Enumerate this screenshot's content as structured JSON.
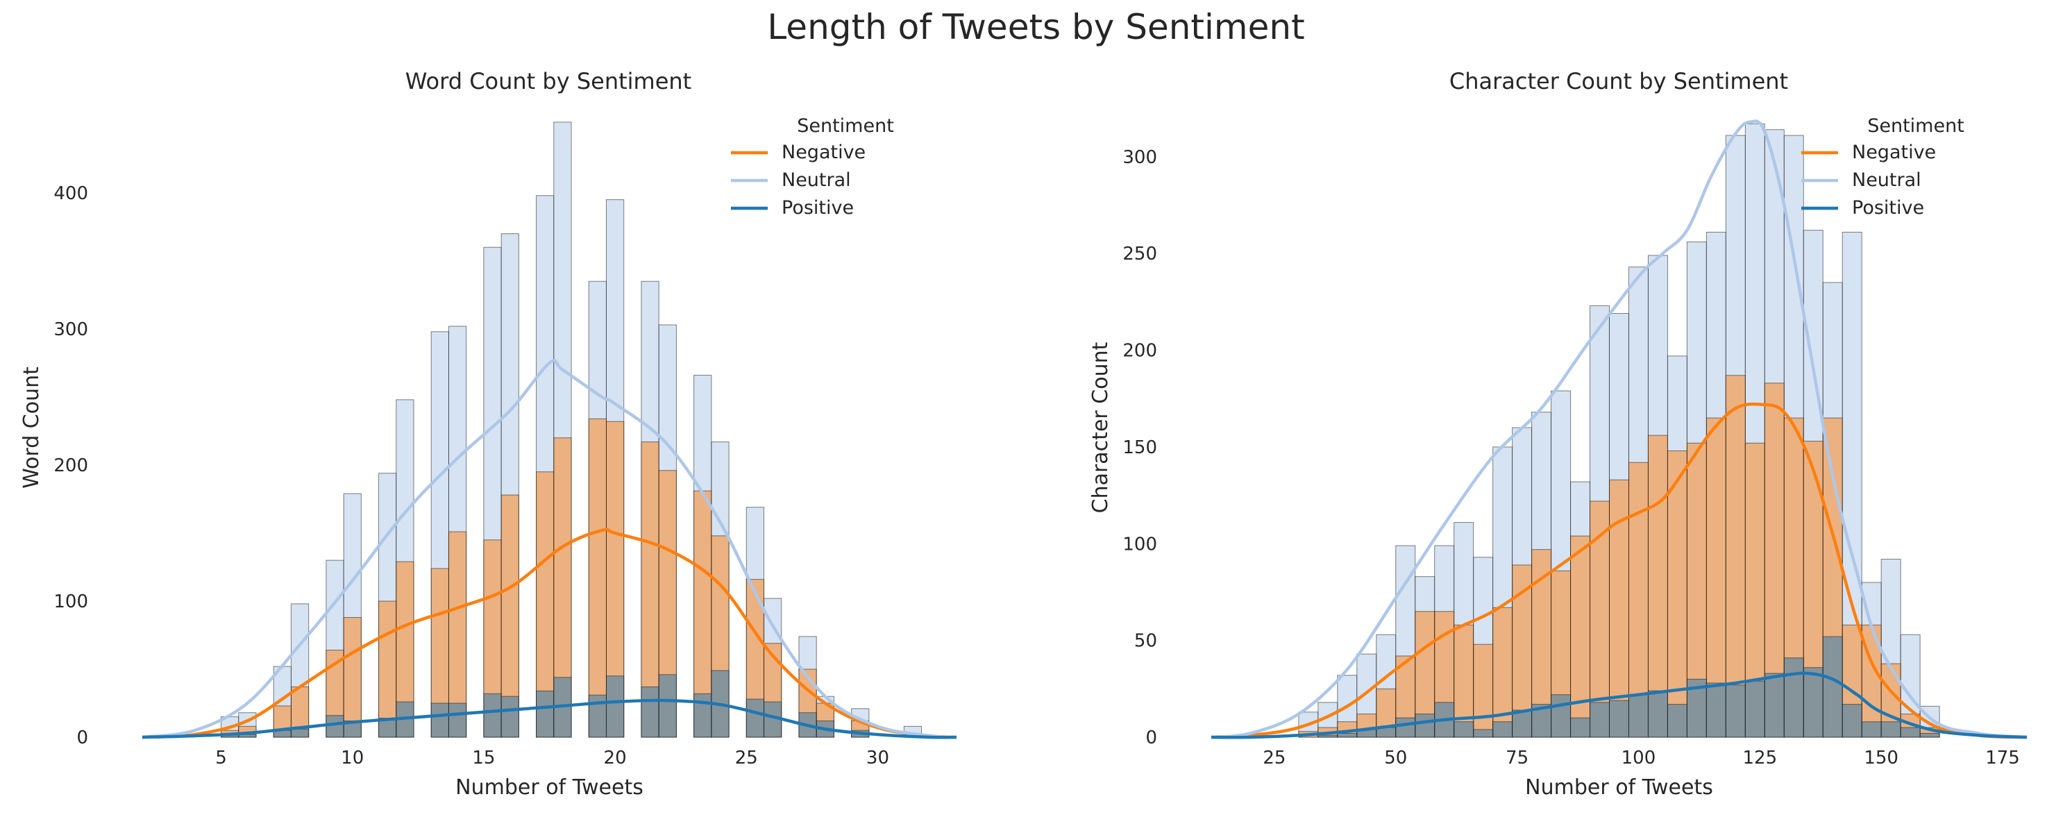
{
  "figure": {
    "title": "Length of Tweets by Sentiment"
  },
  "colors": {
    "Negative": "#ff7f0e",
    "Neutral": "#aec7e8",
    "Positive": "#1f77b4"
  },
  "chart_data": [
    {
      "type": "histogram",
      "title": "Word Count by Sentiment",
      "xlabel": "Number of Tweets",
      "ylabel": "Word Count",
      "xlim": [
        2,
        33
      ],
      "ylim": [
        0,
        455
      ],
      "xticks": [
        5,
        10,
        15,
        20,
        25,
        30
      ],
      "yticks": [
        0,
        100,
        200,
        300,
        400
      ],
      "bin_width": 0.667,
      "grid": false,
      "legend": {
        "title": "Sentiment",
        "position": "top-right",
        "entries": [
          "Negative",
          "Neutral",
          "Positive"
        ]
      },
      "bins": [
        5,
        5.667,
        7,
        7.667,
        9,
        9.667,
        11,
        11.667,
        13,
        13.667,
        15,
        15.667,
        17,
        17.667,
        19,
        19.667,
        21,
        21.667,
        23,
        23.667,
        25,
        25.667,
        27,
        27.667,
        29,
        31
      ],
      "series": [
        {
          "name": "Negative",
          "values": [
            5,
            8,
            23,
            37,
            64,
            88,
            100,
            129,
            124,
            151,
            145,
            178,
            195,
            220,
            234,
            232,
            217,
            196,
            181,
            148,
            116,
            69,
            50,
            25,
            12,
            2
          ]
        },
        {
          "name": "Neutral",
          "values": [
            15,
            18,
            52,
            98,
            130,
            179,
            194,
            248,
            298,
            302,
            360,
            370,
            398,
            452,
            335,
            395,
            335,
            303,
            266,
            217,
            169,
            102,
            74,
            30,
            21,
            8
          ]
        },
        {
          "name": "Positive",
          "values": [
            2,
            2,
            5,
            6,
            16,
            12,
            14,
            26,
            25,
            25,
            32,
            30,
            34,
            44,
            31,
            45,
            37,
            46,
            32,
            49,
            28,
            26,
            18,
            12,
            5,
            1
          ]
        }
      ],
      "kde": [
        {
          "name": "Negative",
          "x": [
            2,
            4,
            6,
            8,
            10,
            12,
            14,
            16,
            18,
            19.5,
            20,
            22,
            24,
            26,
            28,
            30,
            32,
            33
          ],
          "y": [
            0,
            2,
            12,
            37,
            62,
            82,
            95,
            110,
            140,
            152,
            150,
            138,
            112,
            60,
            25,
            7,
            1,
            0
          ]
        },
        {
          "name": "Neutral",
          "x": [
            2,
            4,
            6,
            8,
            10,
            12,
            14,
            16,
            17.5,
            18,
            19.5,
            20,
            22,
            24,
            26,
            28,
            30,
            32,
            33
          ],
          "y": [
            0,
            5,
            25,
            68,
            115,
            165,
            205,
            240,
            275,
            270,
            250,
            245,
            215,
            158,
            82,
            30,
            8,
            1,
            0
          ]
        },
        {
          "name": "Positive",
          "x": [
            2,
            4,
            6,
            8,
            10,
            12,
            14,
            16,
            18,
            20,
            22,
            24,
            26,
            28,
            30,
            32,
            33
          ],
          "y": [
            0,
            1,
            3,
            7,
            11,
            14,
            17,
            20,
            23,
            26,
            27,
            24,
            15,
            6,
            2,
            0,
            0
          ]
        }
      ]
    },
    {
      "type": "histogram",
      "title": "Character Count by Sentiment",
      "xlabel": "Number of Tweets",
      "ylabel": "Character Count",
      "xlim": [
        12,
        180
      ],
      "ylim": [
        0,
        320
      ],
      "xticks": [
        25,
        50,
        75,
        100,
        125,
        150,
        175
      ],
      "yticks": [
        0,
        50,
        100,
        150,
        200,
        250,
        300
      ],
      "bin_width": 4,
      "grid": false,
      "legend": {
        "title": "Sentiment",
        "position": "top-right",
        "entries": [
          "Negative",
          "Neutral",
          "Positive"
        ]
      },
      "bins": [
        30,
        34,
        38,
        42,
        46,
        50,
        54,
        58,
        62,
        66,
        70,
        74,
        78,
        82,
        86,
        90,
        94,
        98,
        102,
        106,
        110,
        114,
        118,
        122,
        126,
        130,
        134,
        138,
        142,
        146,
        150,
        154,
        158
      ],
      "series": [
        {
          "name": "Negative",
          "values": [
            3,
            5,
            8,
            12,
            25,
            42,
            65,
            65,
            58,
            48,
            67,
            89,
            97,
            86,
            104,
            122,
            133,
            142,
            156,
            148,
            152,
            165,
            187,
            152,
            183,
            165,
            153,
            165,
            58,
            58,
            38,
            12,
            5
          ]
        },
        {
          "name": "Neutral",
          "values": [
            13,
            18,
            32,
            43,
            53,
            99,
            83,
            99,
            111,
            93,
            150,
            160,
            168,
            179,
            132,
            223,
            219,
            243,
            249,
            197,
            256,
            261,
            311,
            317,
            314,
            311,
            262,
            235,
            261,
            80,
            92,
            53,
            16
          ]
        },
        {
          "name": "Positive",
          "values": [
            0,
            1,
            2,
            4,
            5,
            10,
            12,
            18,
            8,
            4,
            8,
            14,
            17,
            22,
            10,
            18,
            19,
            22,
            24,
            17,
            30,
            28,
            27,
            29,
            33,
            41,
            36,
            52,
            17,
            8,
            8,
            5,
            2
          ]
        }
      ],
      "kde": [
        {
          "name": "Negative",
          "x": [
            12,
            20,
            30,
            40,
            50,
            60,
            70,
            80,
            90,
            95,
            100,
            105,
            110,
            115,
            120,
            125,
            130,
            135,
            140,
            145,
            150,
            160,
            170,
            180
          ],
          "y": [
            0,
            1,
            5,
            16,
            35,
            53,
            65,
            82,
            100,
            110,
            116,
            123,
            140,
            158,
            170,
            172,
            168,
            145,
            105,
            60,
            30,
            7,
            1,
            0
          ]
        },
        {
          "name": "Neutral",
          "x": [
            12,
            20,
            30,
            40,
            50,
            60,
            70,
            80,
            90,
            100,
            105,
            110,
            115,
            120,
            123,
            126,
            130,
            135,
            140,
            145,
            150,
            160,
            170,
            180
          ],
          "y": [
            0,
            2,
            12,
            35,
            72,
            110,
            145,
            170,
            205,
            238,
            250,
            262,
            290,
            312,
            318,
            313,
            275,
            205,
            135,
            85,
            45,
            10,
            2,
            0
          ]
        },
        {
          "name": "Positive",
          "x": [
            12,
            20,
            30,
            40,
            50,
            60,
            70,
            80,
            90,
            100,
            110,
            120,
            130,
            135,
            140,
            145,
            150,
            160,
            170,
            180
          ],
          "y": [
            0,
            0,
            1,
            3,
            6,
            9,
            11,
            15,
            19,
            22,
            25,
            28,
            32,
            33,
            30,
            22,
            13,
            4,
            1,
            0
          ]
        }
      ]
    }
  ]
}
